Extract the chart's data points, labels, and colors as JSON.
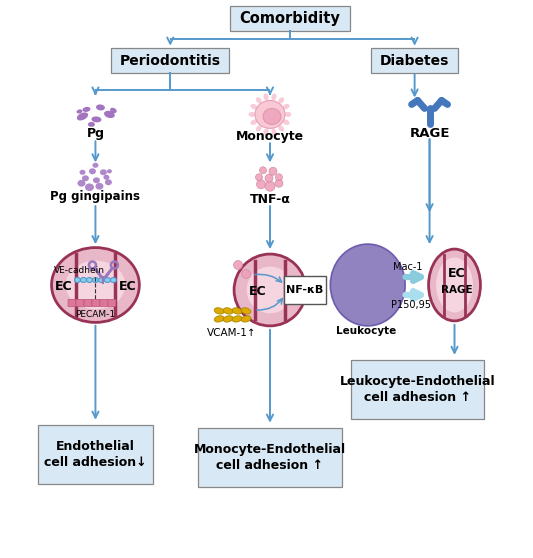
{
  "bg_color": "#ffffff",
  "arrow_color": "#5599cc",
  "box_bg": "#d8e8f4",
  "title": "Comorbidity",
  "periodontitis": "Periodontitis",
  "diabetes": "Diabetes",
  "pg": "Pg",
  "monocyte": "Monocyte",
  "rage": "RAGE",
  "pg_gingipains": "Pg gingipains",
  "tnf_alpha": "TNF-α",
  "ve_cadhein": "VE-cadhein",
  "pecam1": "PECAM-1",
  "ec": "EC",
  "nfkb": "NF-κB",
  "vcam1": "VCAM-1↑",
  "mac1": "Mac-1",
  "p15095": "P150,95",
  "rage_label": "RAGE",
  "leukocyte": "Leukocyte",
  "endo_adhesion": "Endothelial\ncell adhesion↓",
  "mono_adhesion": "Monocyte-Endothelial\ncell adhesion ↑",
  "leuko_adhesion": "Leukocyte-Endothelial\ncell adhesion ↑",
  "purple_color": "#8855aa",
  "pink_bg": "#ebbbc8",
  "dark_red": "#993355",
  "leuko_purple": "#8877bb",
  "golden": "#ddaa00",
  "scissors_purple": "#9977bb",
  "light_blue": "#88ccee",
  "border_color": "#888888"
}
